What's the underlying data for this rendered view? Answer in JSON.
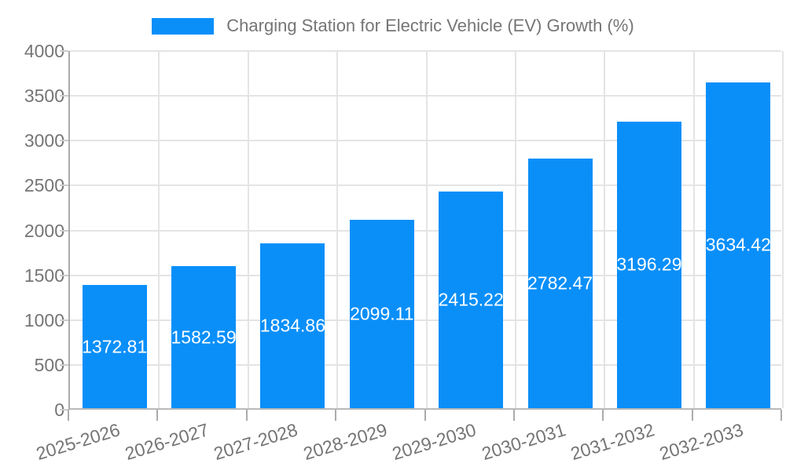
{
  "legend": {
    "label": "Charging Station for Electric Vehicle (EV) Growth (%)"
  },
  "chart_data": {
    "type": "bar",
    "title": "Charging Station for Electric Vehicle (EV) Growth (%)",
    "categories": [
      "2025-2026",
      "2026-2027",
      "2027-2028",
      "2028-2029",
      "2029-2030",
      "2030-2031",
      "2031-2032",
      "2032-2033"
    ],
    "values": [
      1372.81,
      1582.59,
      1834.86,
      2099.11,
      2415.22,
      2782.47,
      3196.29,
      3634.42
    ],
    "value_labels": [
      "1372.81",
      "1582.59",
      "1834.86",
      "2099.11",
      "2415.22",
      "2782.47",
      "3196.29",
      "3634.42"
    ],
    "xlabel": "",
    "ylabel": "",
    "ylim": [
      0,
      4000
    ],
    "yticks": [
      0,
      500,
      1000,
      1500,
      2000,
      2500,
      3000,
      3500,
      4000
    ],
    "grid": true,
    "legend_position": "top",
    "bar_color": "#0a8ff9",
    "value_label_color": "#ffffff",
    "axis_text_color": "#757575",
    "gridline_color": "#e4e4e4"
  }
}
